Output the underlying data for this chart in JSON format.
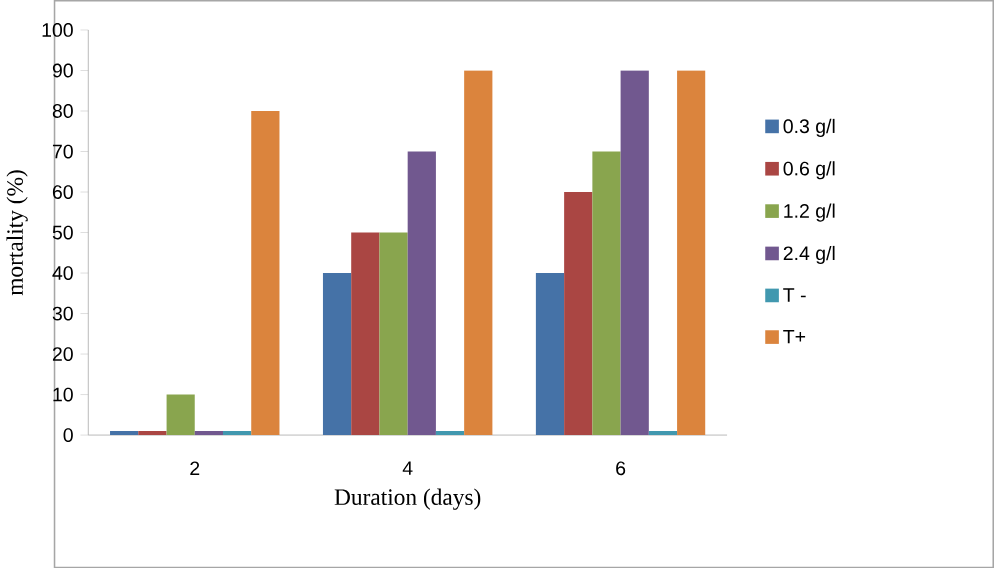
{
  "chart_data": {
    "type": "bar",
    "xlabel": "Duration (days)",
    "ylabel": "mortality (%)",
    "categories": [
      "2",
      "4",
      "6"
    ],
    "series": [
      {
        "name": "0.3 g/l",
        "color": "#4572a7",
        "values": [
          1,
          40,
          40
        ]
      },
      {
        "name": "0.6 g/l",
        "color": "#aa4643",
        "values": [
          1,
          50,
          60
        ]
      },
      {
        "name": "1.2 g/l",
        "color": "#89a54e",
        "values": [
          10,
          50,
          70
        ]
      },
      {
        "name": "2.4 g/l",
        "color": "#71588f",
        "values": [
          1,
          70,
          90
        ]
      },
      {
        "name": "T -",
        "color": "#4198af",
        "values": [
          1,
          1,
          1
        ]
      },
      {
        "name": "T+",
        "color": "#db843d",
        "values": [
          80,
          90,
          90
        ]
      }
    ],
    "ylim": [
      0,
      100
    ],
    "yticks": [
      0,
      10,
      20,
      30,
      40,
      50,
      60,
      70,
      80,
      90,
      100
    ],
    "grid": false,
    "legend": "right"
  }
}
